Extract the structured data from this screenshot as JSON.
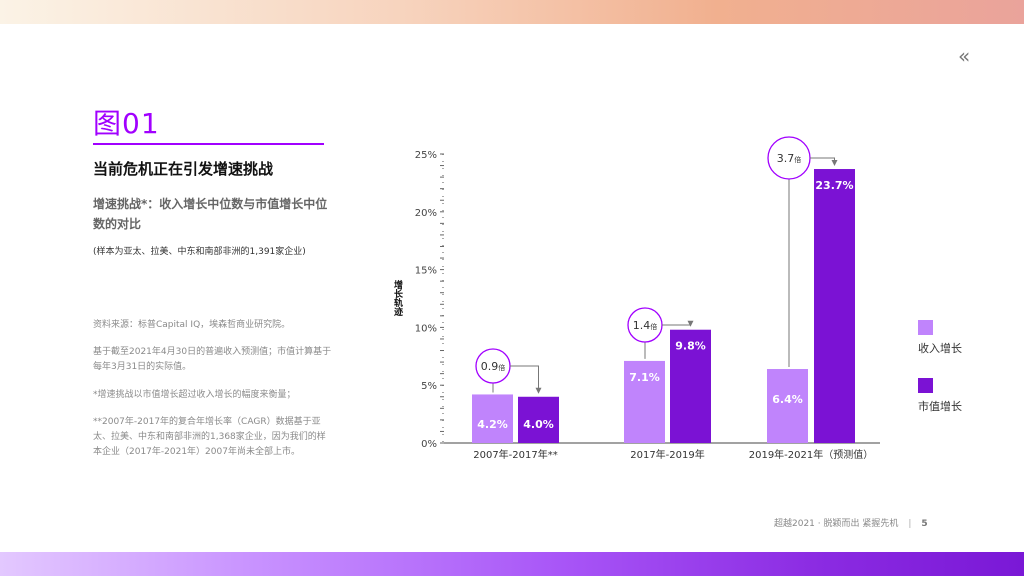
{
  "header": {
    "back_icon": "double-chevron-left-icon",
    "back_glyph": "«"
  },
  "figure": {
    "number": "图01",
    "title": "当前危机正在引发增速挑战",
    "subtitle": "增速挑战*：收入增长中位数与市值增长中位数的对比",
    "sample": "(样本为亚太、拉美、中东和南部非洲的1,391家企业)",
    "notes": [
      "资料来源：标普Capital IQ，埃森哲商业研究院。",
      "基于截至2021年4月30日的普遍收入预测值；市值计算基于每年3月31日的实际值。",
      "*增速挑战以市值增长超过收入增长的幅度来衡量；",
      "**2007年-2017年的复合年增长率（CAGR）数据基于亚太、拉美、中东和南部非洲的1,368家企业，因为我们的样本企业（2017年-2021年）2007年尚未全部上市。"
    ]
  },
  "colors": {
    "accent": "#a100ff",
    "revenue": "#c084fc",
    "market": "#7b12d4"
  },
  "chart_data": {
    "type": "bar",
    "title": "当前危机正在引发增速挑战",
    "ylabel": "增长轨迹",
    "xlabel": "",
    "ylim": [
      0,
      25
    ],
    "yticks": [
      "0%",
      "5%",
      "10%",
      "15%",
      "20%",
      "25%"
    ],
    "grid": false,
    "categories": [
      "2007年-2017年**",
      "2017年-2019年",
      "2019年-2021年（预测值）"
    ],
    "series": [
      {
        "name": "收入增长",
        "values": [
          4.2,
          7.1,
          6.4
        ],
        "labels": [
          "4.2%",
          "7.1%",
          "6.4%"
        ]
      },
      {
        "name": "市值增长",
        "values": [
          4.0,
          9.8,
          23.7
        ],
        "labels": [
          "4.0%",
          "9.8%",
          "23.7%"
        ]
      }
    ],
    "annotations": [
      {
        "text": "0.9",
        "unit": "倍",
        "category": 0
      },
      {
        "text": "1.4",
        "unit": "倍",
        "category": 1
      },
      {
        "text": "3.7",
        "unit": "倍",
        "category": 2
      }
    ],
    "legend_position": "right"
  },
  "footer": {
    "text": "超越2021 · 脱颖而出 紧握先机",
    "page": "5"
  }
}
